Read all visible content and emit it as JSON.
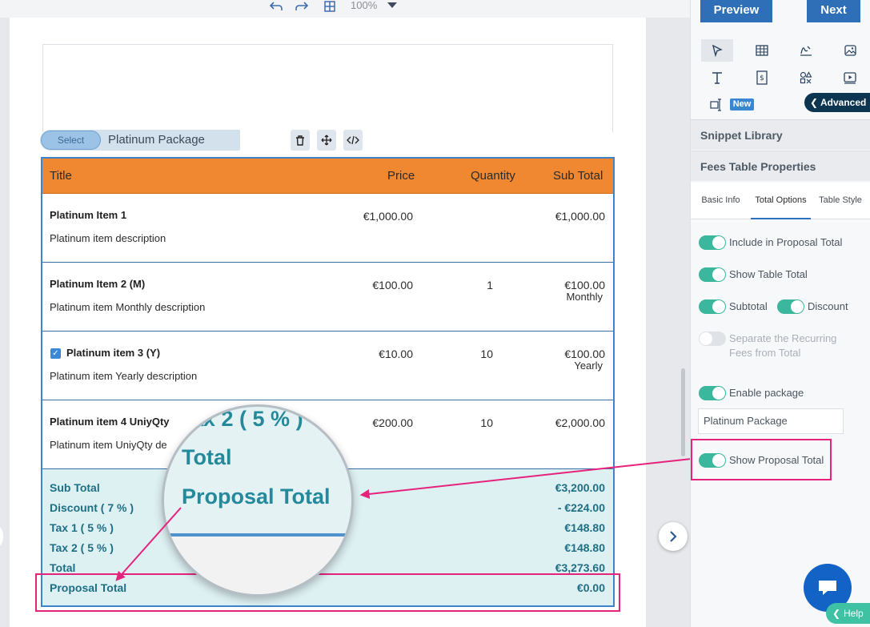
{
  "toolbar": {
    "zoom": "100%"
  },
  "editor": {
    "select_button": "Select",
    "selected_name": "Platinum Package",
    "delete_icon": "trash-icon",
    "move_icon": "move-icon",
    "code_icon": "code-icon"
  },
  "fees_table": {
    "headers": {
      "title": "Title",
      "price": "Price",
      "quantity": "Quantity",
      "subtotal": "Sub Total"
    },
    "rows": [
      {
        "name": "Platinum Item 1",
        "description": "Platinum item description",
        "price": "€1,000.00",
        "quantity": "",
        "subtotal": "€1,000.00",
        "note": ""
      },
      {
        "name": "Platinum Item 2 (M)",
        "description": "Platinum item Monthly description",
        "price": "€100.00",
        "quantity": "1",
        "subtotal": "€100.00",
        "note": "Monthly"
      },
      {
        "name": "Platinum item 3 (Y)",
        "description": "Platinum item Yearly description",
        "price": "€10.00",
        "quantity": "10",
        "subtotal": "€100.00",
        "note": "Yearly"
      },
      {
        "name": "Platinum item 4 UniyQty",
        "description": "Platinum item UniyQty de",
        "price": "€200.00",
        "quantity": "10",
        "subtotal": "€2,000.00",
        "note": ""
      }
    ],
    "totals": [
      {
        "label": "Sub Total",
        "value": "€3,200.00"
      },
      {
        "label": "Discount ( 7 % )",
        "value": "- €224.00"
      },
      {
        "label": "Tax 1 ( 5 % )",
        "value": "€148.80"
      },
      {
        "label": "Tax 2 ( 5 % )",
        "value": "€148.80"
      },
      {
        "label": "Total",
        "value": "€3,273.60"
      },
      {
        "label": "Proposal Total",
        "value": "€0.00"
      }
    ]
  },
  "magnifier": {
    "line1": "ax 2 ( 5 % )",
    "line2": "Total",
    "line3": "Proposal Total"
  },
  "panel": {
    "preview_button": "Preview",
    "next_button": "Next",
    "new_badge": "New",
    "advanced_label": "Advanced",
    "snippet_library": "Snippet Library",
    "fees_props": "Fees Table Properties",
    "tabs": [
      "Basic Info",
      "Total Options",
      "Table Style"
    ],
    "options": {
      "include_proposal_total": "Include in Proposal Total",
      "show_table_total": "Show Table Total",
      "subtotal": "Subtotal",
      "discount": "Discount",
      "separate_recurring_1": "Separate the Recurring",
      "separate_recurring_2": "Fees from Total",
      "enable_package": "Enable package",
      "package_name": "Platinum Package",
      "show_proposal_total": "Show Proposal Total"
    },
    "help_label": "Help"
  },
  "colors": {
    "header_orange": "#ef8831",
    "table_border": "#3f84c8",
    "totals_bg": "#ddf0f2",
    "totals_text": "#1e6f86",
    "highlight_pink": "#e6237c",
    "toggle_on": "#3ab79c",
    "primary_button": "#2f6fb7"
  }
}
